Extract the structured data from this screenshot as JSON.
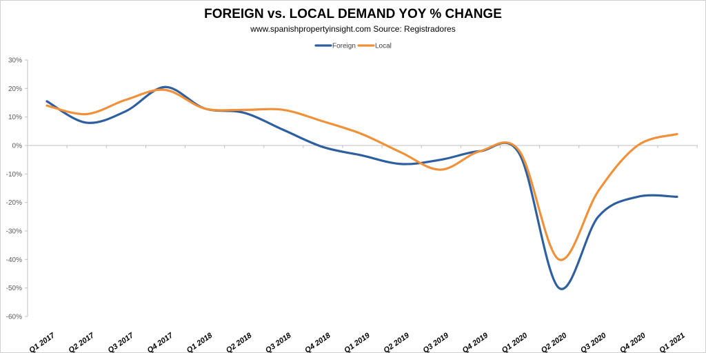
{
  "chart_data": {
    "type": "line",
    "title": "FOREIGN vs. LOCAL DEMAND YOY % CHANGE",
    "subtitle": "www.spanishpropertyinsight.com Source: Registradores",
    "xlabel": "",
    "ylabel": "",
    "ylim": [
      -60,
      30
    ],
    "yticks": [
      30,
      20,
      10,
      0,
      -10,
      -20,
      -30,
      -40,
      -50,
      -60
    ],
    "ytick_labels": [
      "30%",
      "20%",
      "10%",
      "0%",
      "-10%",
      "-20%",
      "-30%",
      "-40%",
      "-50%",
      "-60%"
    ],
    "categories": [
      "Q1 2017",
      "Q2 2017",
      "Q3 2017",
      "Q4 2017",
      "Q1 2018",
      "Q2 2018",
      "Q3 2018",
      "Q4 2018",
      "Q1 2019",
      "Q2 2019",
      "Q3 2019",
      "Q4 2019",
      "Q1 2020",
      "Q2 2020",
      "Q3 2020",
      "Q4 2020",
      "Q1 2021"
    ],
    "legend_position": "top",
    "grid": false,
    "series": [
      {
        "name": "Foreign",
        "color": "#2e5f9e",
        "values": [
          15.5,
          8,
          12,
          20.5,
          13,
          11.5,
          5.5,
          -0.5,
          -3.5,
          -6.5,
          -5,
          -2,
          -3,
          -50,
          -25,
          -18,
          -18
        ]
      },
      {
        "name": "Local",
        "color": "#f0913a",
        "values": [
          14,
          11,
          16,
          19.5,
          13,
          12.5,
          12.5,
          8.5,
          4,
          -2.5,
          -8.5,
          -2,
          -2,
          -40,
          -16,
          0,
          4
        ]
      }
    ]
  }
}
